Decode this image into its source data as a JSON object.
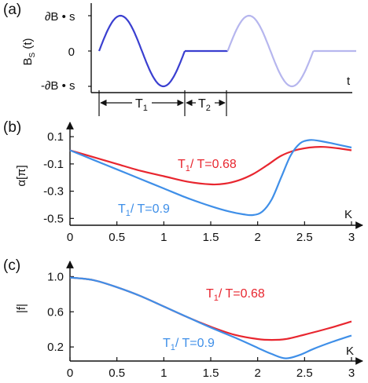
{
  "colors": {
    "red": "#e8262f",
    "blue": "#3f8fe8",
    "pulse_dark": "#3a3fd0",
    "pulse_light": "#b6b6ee",
    "axis": "#111111"
  },
  "chart_data": [
    {
      "panel_label": "(a)",
      "type": "line",
      "ylabel_main": "B",
      "ylabel_sub": "S",
      "ylabel_suffix": " (t)",
      "xlabel": "t",
      "ytick_top_main": "∂B",
      "ytick_top_suffix": " • s",
      "ytick_zero": "0",
      "ytick_bottom_main": "-∂B",
      "ytick_bottom_suffix": " • s",
      "interval_T1_main": "T",
      "interval_T1_sub": "1",
      "interval_T2_main": "T",
      "interval_T2_sub": "2",
      "ylim": [
        -1,
        1
      ],
      "segments": [
        {
          "kind": "sine",
          "t": [
            0,
            1
          ],
          "shade": "dark"
        },
        {
          "kind": "flat",
          "t": [
            1,
            1.5
          ],
          "shade": "dark"
        },
        {
          "kind": "sine",
          "t": [
            1.5,
            2.5
          ],
          "shade": "light"
        },
        {
          "kind": "flat",
          "t": [
            2.5,
            3.0
          ],
          "shade": "light"
        }
      ]
    },
    {
      "panel_label": "(b)",
      "type": "line",
      "ylabel": "α[π]",
      "xlabel": "K",
      "xlim": [
        0,
        3
      ],
      "ylim": [
        -0.55,
        0.17
      ],
      "xticks": [
        0,
        0.5,
        1,
        1.5,
        2,
        2.5,
        3
      ],
      "xtick_labels": [
        "0",
        "0.5",
        "1",
        "1.5",
        "2",
        "2.5",
        "3"
      ],
      "yticks": [
        0.1,
        -0.1,
        -0.3,
        -0.5
      ],
      "ytick_labels": [
        "0.1",
        "-0.1",
        "-0.3",
        "-0.5"
      ],
      "series": [
        {
          "label_main": "T",
          "label_sub": "1",
          "label_suffix": "/ T=0.68",
          "color": "red",
          "x": [
            0,
            0.25,
            0.5,
            0.75,
            1.0,
            1.25,
            1.5,
            1.65,
            1.8,
            1.95,
            2.1,
            2.25,
            2.4,
            2.55,
            2.7,
            2.85,
            3.0
          ],
          "y": [
            0,
            -0.05,
            -0.1,
            -0.15,
            -0.19,
            -0.23,
            -0.25,
            -0.245,
            -0.22,
            -0.175,
            -0.11,
            -0.04,
            0.0,
            0.02,
            0.025,
            0.015,
            0.0
          ]
        },
        {
          "label_main": "T",
          "label_sub": "1",
          "label_suffix": "/ T=0.9",
          "color": "blue",
          "x": [
            0,
            0.25,
            0.5,
            0.75,
            1.0,
            1.25,
            1.5,
            1.7,
            1.85,
            1.95,
            2.05,
            2.15,
            2.25,
            2.35,
            2.45,
            2.55,
            2.65,
            2.8,
            3.0
          ],
          "y": [
            0,
            -0.07,
            -0.14,
            -0.21,
            -0.28,
            -0.35,
            -0.41,
            -0.45,
            -0.47,
            -0.475,
            -0.45,
            -0.36,
            -0.2,
            -0.04,
            0.05,
            0.075,
            0.07,
            0.05,
            0.02
          ]
        }
      ]
    },
    {
      "panel_label": "(c)",
      "type": "line",
      "ylabel": "|f|",
      "xlabel": "K",
      "xlim": [
        0,
        3
      ],
      "ylim": [
        0.04,
        1.12
      ],
      "xticks": [
        0,
        0.5,
        1,
        1.5,
        2,
        2.5,
        3
      ],
      "xtick_labels": [
        "0",
        "0.5",
        "1",
        "1.5",
        "2",
        "2.5",
        "3"
      ],
      "yticks": [
        1.0,
        0.6,
        0.2
      ],
      "ytick_labels": [
        "1.0",
        "0.6",
        "0.2"
      ],
      "series": [
        {
          "label_main": "T",
          "label_sub": "1",
          "label_suffix": "/ T=0.68",
          "color": "red",
          "x": [
            0,
            0.25,
            0.5,
            0.75,
            1.0,
            1.25,
            1.5,
            1.75,
            2.0,
            2.15,
            2.3,
            2.5,
            2.75,
            3.0
          ],
          "y": [
            0.99,
            0.96,
            0.88,
            0.78,
            0.66,
            0.54,
            0.43,
            0.34,
            0.29,
            0.28,
            0.29,
            0.34,
            0.41,
            0.49
          ]
        },
        {
          "label_main": "T",
          "label_sub": "1",
          "label_suffix": "/ T=0.9",
          "color": "blue",
          "x": [
            0,
            0.25,
            0.5,
            0.75,
            1.0,
            1.25,
            1.5,
            1.75,
            2.0,
            2.15,
            2.3,
            2.45,
            2.6,
            2.8,
            3.0
          ],
          "y": [
            0.99,
            0.96,
            0.88,
            0.78,
            0.66,
            0.54,
            0.42,
            0.31,
            0.19,
            0.12,
            0.07,
            0.11,
            0.18,
            0.26,
            0.33
          ]
        }
      ]
    }
  ]
}
